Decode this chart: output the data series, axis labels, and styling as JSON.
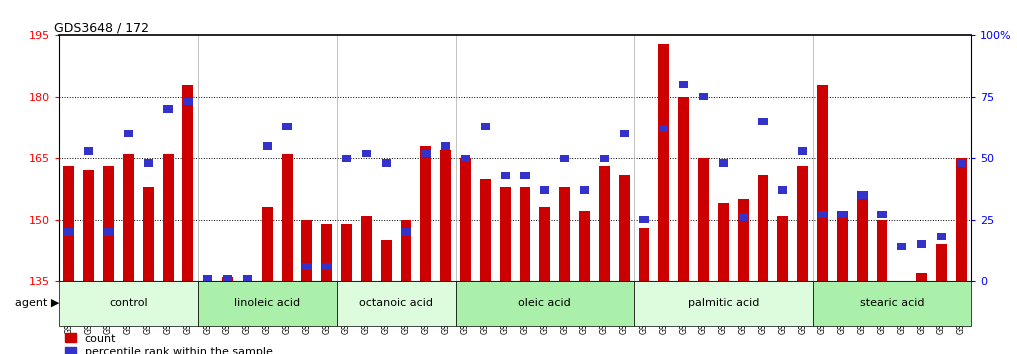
{
  "title": "GDS3648 / 172",
  "samples": [
    "GSM525196",
    "GSM525197",
    "GSM525198",
    "GSM525199",
    "GSM525200",
    "GSM525201",
    "GSM525202",
    "GSM525203",
    "GSM525204",
    "GSM525205",
    "GSM525206",
    "GSM525207",
    "GSM525208",
    "GSM525209",
    "GSM525210",
    "GSM525211",
    "GSM525212",
    "GSM525213",
    "GSM525214",
    "GSM525215",
    "GSM525216",
    "GSM525217",
    "GSM525218",
    "GSM525219",
    "GSM525220",
    "GSM525221",
    "GSM525222",
    "GSM525223",
    "GSM525224",
    "GSM525225",
    "GSM525226",
    "GSM525227",
    "GSM525228",
    "GSM525229",
    "GSM525230",
    "GSM525231",
    "GSM525232",
    "GSM525233",
    "GSM525234",
    "GSM525235",
    "GSM525236",
    "GSM525237",
    "GSM525238",
    "GSM525239",
    "GSM525240",
    "GSM525241"
  ],
  "count_values": [
    163,
    162,
    163,
    166,
    158,
    166,
    183,
    135,
    136,
    135,
    153,
    166,
    150,
    149,
    149,
    151,
    145,
    150,
    168,
    167,
    165,
    160,
    158,
    158,
    153,
    158,
    152,
    163,
    161,
    148,
    193,
    180,
    165,
    154,
    155,
    161,
    151,
    163,
    183,
    152,
    157,
    150,
    135,
    137,
    144,
    165
  ],
  "percentile_values": [
    20,
    53,
    20,
    60,
    48,
    70,
    73,
    1,
    1,
    1,
    55,
    63,
    6,
    6,
    50,
    52,
    48,
    20,
    52,
    55,
    50,
    63,
    43,
    43,
    37,
    50,
    37,
    50,
    60,
    25,
    62,
    80,
    75,
    48,
    26,
    65,
    37,
    53,
    27,
    27,
    35,
    27,
    14,
    15,
    18,
    48
  ],
  "groups": [
    {
      "label": "control",
      "start": 0,
      "end": 7,
      "color": "#ddfcdd"
    },
    {
      "label": "linoleic acid",
      "start": 7,
      "end": 14,
      "color": "#aaf0aa"
    },
    {
      "label": "octanoic acid",
      "start": 14,
      "end": 20,
      "color": "#ddfcdd"
    },
    {
      "label": "oleic acid",
      "start": 20,
      "end": 29,
      "color": "#aaf0aa"
    },
    {
      "label": "palmitic acid",
      "start": 29,
      "end": 38,
      "color": "#ddfcdd"
    },
    {
      "label": "stearic acid",
      "start": 38,
      "end": 46,
      "color": "#aaf0aa"
    }
  ],
  "ylim": [
    135,
    195
  ],
  "yticks": [
    135,
    150,
    165,
    180,
    195
  ],
  "ytick_right": [
    0,
    25,
    50,
    75,
    100
  ],
  "bar_color": "#cc0000",
  "percentile_color": "#3333cc",
  "bar_width": 0.55,
  "agent_label": "agent",
  "legend_count": "count",
  "legend_pct": "percentile rank within the sample",
  "grid_lines": [
    150,
    165,
    180
  ]
}
